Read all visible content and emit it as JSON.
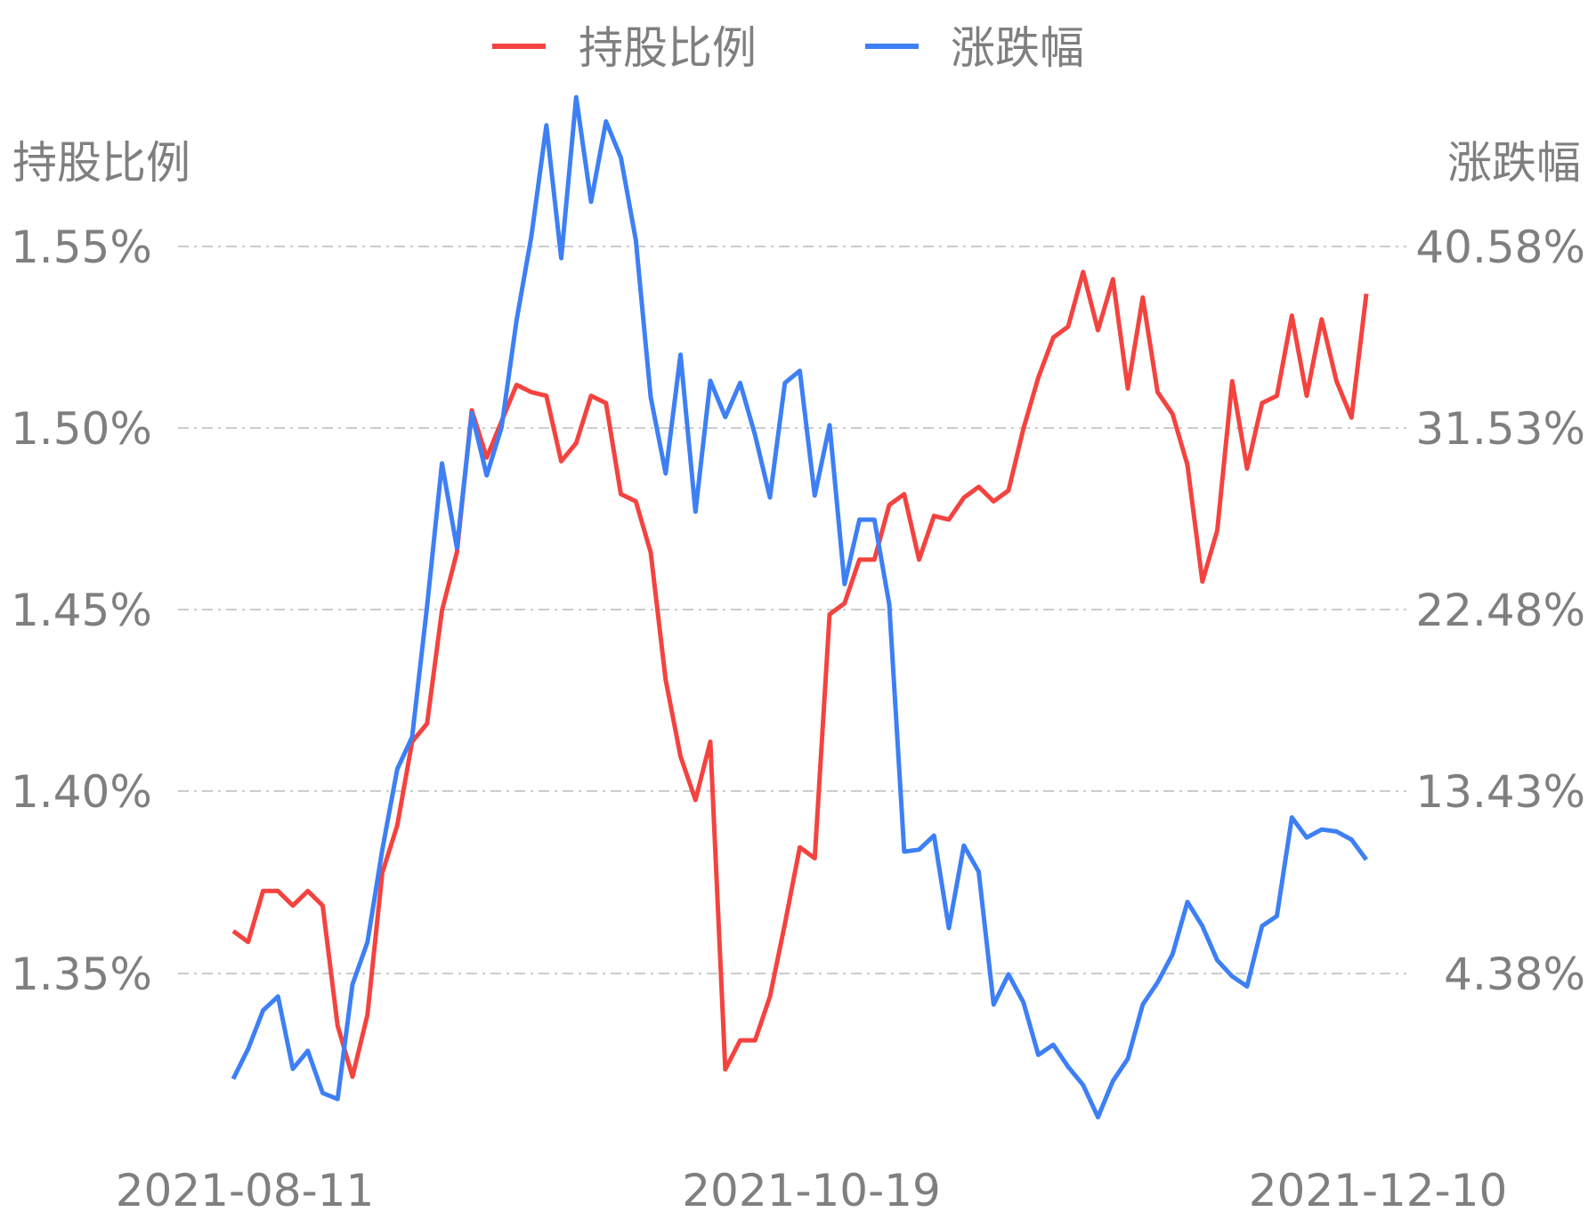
{
  "chart_data": {
    "type": "line",
    "legend": {
      "placement": "top-center"
    },
    "legend_items": [
      {
        "name": "持股比例",
        "color": "#f4433f"
      },
      {
        "name": "涨跌幅",
        "color": "#3d7ff5"
      }
    ],
    "y_left_title": "持股比例",
    "y_right_title": "涨跌幅",
    "y_left_ticks": [
      "1.35%",
      "1.40%",
      "1.45%",
      "1.50%",
      "1.55%"
    ],
    "y_right_ticks": [
      "4.38%",
      "13.43%",
      "22.48%",
      "31.53%",
      "40.58%"
    ],
    "y_left_range": [
      1.3,
      1.55
    ],
    "y_right_range": [
      -4.67,
      40.58
    ],
    "x_tick_labels": [
      "2021-08-11",
      "2021-10-19",
      "2021-12-10"
    ],
    "x_tick_indices": [
      0,
      38,
      76
    ],
    "grid": "horizontal-dashed",
    "series": [
      {
        "name": "持股比例",
        "color": "#f4433f",
        "axis": "left",
        "values": [
          1.362,
          1.359,
          1.373,
          1.373,
          1.369,
          1.373,
          1.369,
          1.336,
          1.322,
          1.339,
          1.378,
          1.391,
          1.414,
          1.419,
          1.45,
          1.466,
          1.505,
          1.492,
          1.502,
          1.512,
          1.51,
          1.509,
          1.491,
          1.496,
          1.509,
          1.507,
          1.482,
          1.48,
          1.466,
          1.431,
          1.41,
          1.398,
          1.414,
          1.324,
          1.332,
          1.332,
          1.344,
          1.364,
          1.385,
          1.382,
          1.449,
          1.452,
          1.464,
          1.464,
          1.479,
          1.482,
          1.464,
          1.476,
          1.475,
          1.481,
          1.484,
          1.48,
          1.483,
          1.5,
          1.514,
          1.525,
          1.528,
          1.543,
          1.527,
          1.541,
          1.511,
          1.536,
          1.51,
          1.504,
          1.49,
          1.458,
          1.472,
          1.513,
          1.489,
          1.507,
          1.509,
          1.531,
          1.509,
          1.53,
          1.513,
          1.503,
          1.537
        ]
      },
      {
        "name": "涨跌幅",
        "color": "#3d7ff5",
        "axis": "right",
        "values": [
          -0.8,
          0.7,
          2.6,
          3.3,
          -0.3,
          0.6,
          -1.5,
          -1.8,
          3.9,
          6.0,
          10.6,
          14.6,
          16.2,
          22.7,
          29.8,
          25.6,
          32.3,
          29.2,
          31.6,
          36.9,
          41.1,
          46.6,
          40.0,
          48.0,
          42.8,
          46.8,
          45.0,
          40.9,
          33.1,
          29.3,
          35.2,
          27.4,
          33.9,
          32.1,
          33.8,
          31.2,
          28.1,
          33.8,
          34.4,
          28.2,
          31.7,
          23.8,
          27.0,
          27.0,
          22.8,
          10.5,
          10.6,
          11.3,
          6.7,
          10.8,
          9.5,
          2.9,
          4.4,
          3.0,
          0.4,
          0.9,
          -0.2,
          -1.1,
          -2.7,
          -0.9,
          0.2,
          2.9,
          4.0,
          5.4,
          8.0,
          6.8,
          5.1,
          4.3,
          3.8,
          6.8,
          7.3,
          12.2,
          11.2,
          11.6,
          11.5,
          11.1,
          10.1
        ]
      }
    ]
  }
}
